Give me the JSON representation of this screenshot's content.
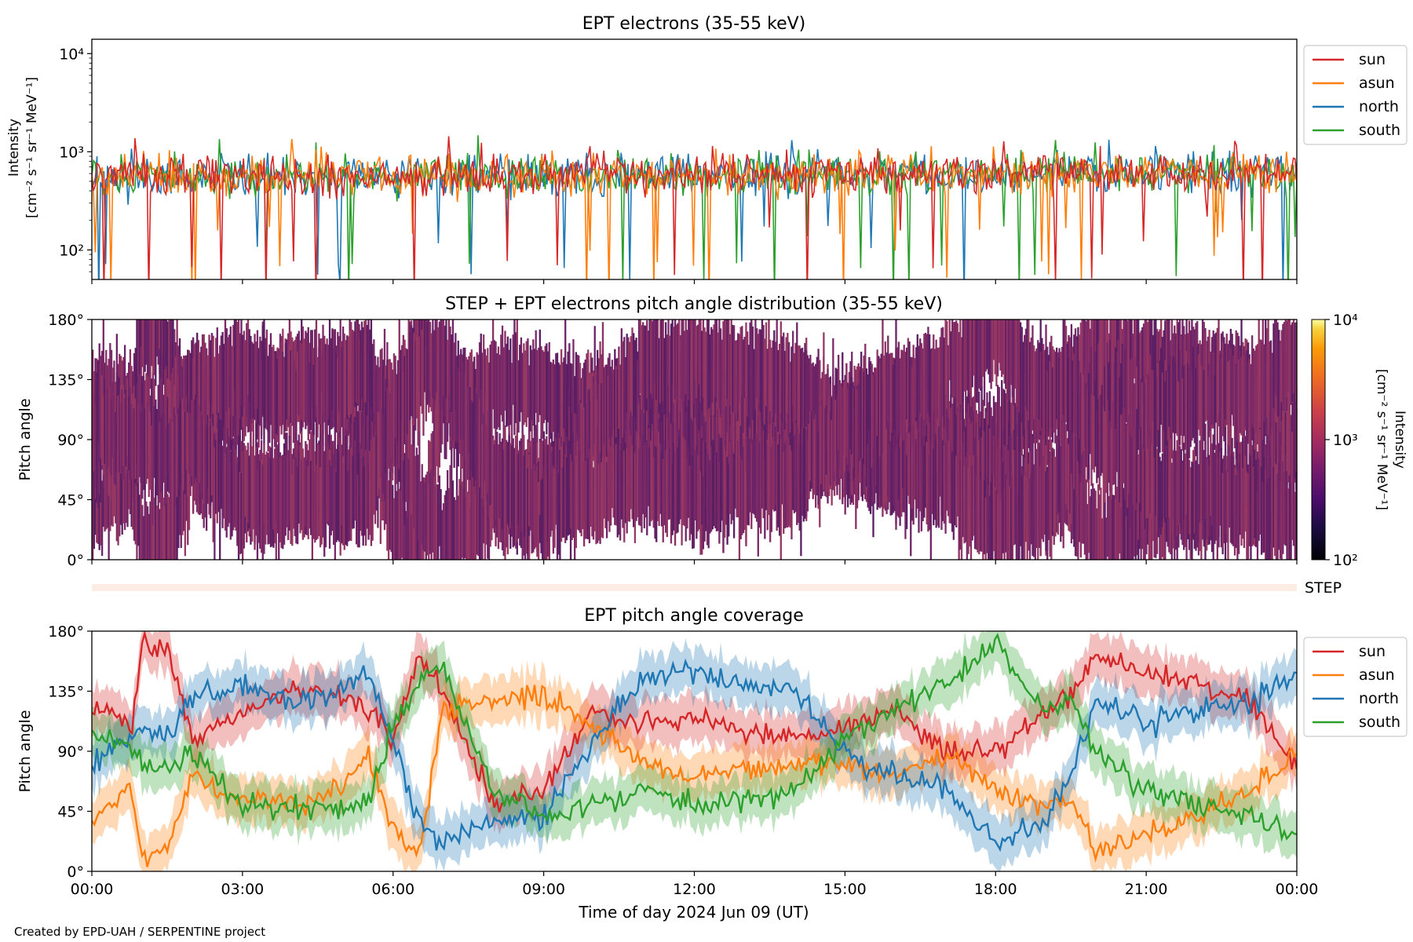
{
  "colors": {
    "sun": "#d62728",
    "asun": "#ff7f0e",
    "north": "#1f77b4",
    "south": "#2ca02c",
    "pad_fill": "#7b2a68"
  },
  "footer": "Created by EPD-UAH / SERPENTINE project",
  "xaxis": {
    "label": "Time of day 2024 Jun 09 (UT)",
    "ticks": [
      "00:00",
      "03:00",
      "06:00",
      "09:00",
      "12:00",
      "15:00",
      "18:00",
      "21:00",
      "00:00"
    ],
    "range_hours": [
      0,
      24
    ]
  },
  "chart_data": [
    {
      "type": "line",
      "title": "EPT electrons (35-55 keV)",
      "ylabel_line1": "Intensity",
      "ylabel_line2": "[cm⁻² s⁻¹ sr⁻¹ MeV⁻¹]",
      "yscale": "log",
      "ylim": [
        50,
        14000
      ],
      "yticks": [
        {
          "value": 100,
          "label": "10²"
        },
        {
          "value": 1000,
          "label": "10³"
        },
        {
          "value": 10000,
          "label": "10⁴"
        }
      ],
      "legend": [
        "sun",
        "asun",
        "north",
        "south"
      ],
      "legend_position": "outside-right",
      "typical_range": [
        300,
        1000
      ],
      "typical_level": 550
    },
    {
      "type": "heatmap",
      "title": "STEP + EPT electrons pitch angle distribution (35-55 keV)",
      "ylabel": "Pitch angle",
      "ylim": [
        0,
        180
      ],
      "yticks": [
        "0°",
        "45°",
        "90°",
        "135°",
        "180°"
      ],
      "colorbar": {
        "label_line1": "Intensity",
        "label_line2": "[cm⁻² s⁻¹ sr⁻¹ MeV⁻¹]",
        "scale": "log",
        "range": [
          100,
          10000
        ],
        "ticks": [
          "10²",
          "10³",
          "10⁴"
        ]
      }
    },
    {
      "type": "bar",
      "label": "STEP"
    },
    {
      "type": "line",
      "title": "EPT pitch angle coverage",
      "ylabel": "Pitch angle",
      "ylim": [
        0,
        180
      ],
      "yticks": [
        "0°",
        "45°",
        "90°",
        "135°",
        "180°"
      ],
      "legend": [
        "sun",
        "asun",
        "north",
        "south"
      ],
      "legend_position": "outside-right",
      "series": [
        {
          "name": "sun",
          "x": [
            0,
            0.8,
            1,
            1.5,
            2,
            3,
            4,
            5,
            5.5,
            6,
            6.5,
            7,
            8,
            9,
            10,
            11,
            12,
            13,
            14,
            15,
            16,
            17,
            18,
            19,
            19.5,
            20,
            21,
            22,
            23,
            24
          ],
          "values": [
            125,
            110,
            170,
            165,
            100,
            120,
            135,
            130,
            120,
            100,
            160,
            130,
            50,
            60,
            120,
            110,
            115,
            105,
            100,
            110,
            120,
            90,
            90,
            120,
            130,
            160,
            150,
            140,
            130,
            80
          ]
        },
        {
          "name": "asun",
          "x": [
            0,
            0.8,
            1,
            1.5,
            2,
            3,
            4,
            5,
            5.5,
            6,
            6.5,
            7,
            8,
            9,
            10,
            11,
            12,
            13,
            14,
            15,
            16,
            17,
            18,
            19,
            19.5,
            20,
            21,
            22,
            23,
            24
          ],
          "values": [
            40,
            60,
            10,
            15,
            70,
            55,
            50,
            60,
            90,
            30,
            10,
            120,
            130,
            130,
            110,
            80,
            70,
            75,
            80,
            80,
            70,
            90,
            60,
            50,
            55,
            15,
            30,
            40,
            60,
            85
          ]
        },
        {
          "name": "north",
          "x": [
            0,
            0.8,
            1,
            1.5,
            2,
            3,
            4,
            5,
            5.5,
            6,
            6.5,
            7,
            8,
            9,
            10,
            11,
            12,
            13,
            14,
            15,
            16,
            17,
            18,
            19,
            19.5,
            20,
            21,
            22,
            23,
            24
          ],
          "values": [
            80,
            100,
            110,
            100,
            130,
            140,
            125,
            135,
            150,
            100,
            40,
            20,
            40,
            40,
            100,
            145,
            150,
            140,
            135,
            90,
            70,
            60,
            20,
            40,
            70,
            130,
            110,
            120,
            125,
            150
          ]
        },
        {
          "name": "south",
          "x": [
            0,
            0.8,
            1,
            1.5,
            2,
            3,
            4,
            5,
            5.5,
            6,
            6.5,
            7,
            8,
            9,
            10,
            11,
            12,
            13,
            14,
            15,
            16,
            17,
            18,
            19,
            19.5,
            20,
            21,
            22,
            23,
            24
          ],
          "values": [
            100,
            95,
            80,
            75,
            90,
            45,
            50,
            45,
            50,
            110,
            140,
            150,
            60,
            40,
            50,
            60,
            50,
            55,
            60,
            100,
            120,
            140,
            170,
            120,
            130,
            90,
            60,
            50,
            40,
            30
          ]
        }
      ]
    }
  ]
}
